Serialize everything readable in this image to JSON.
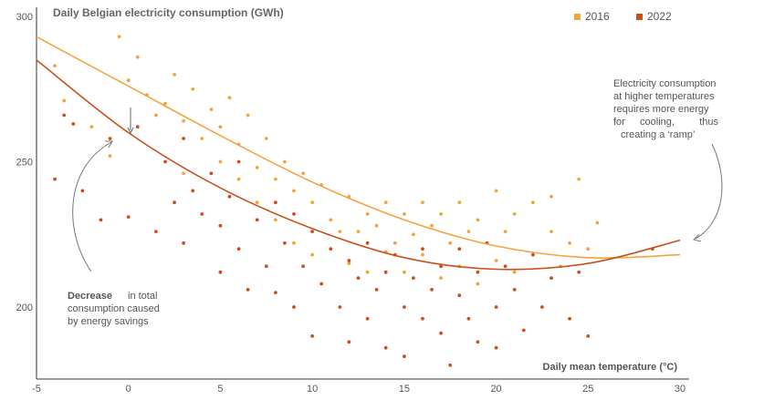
{
  "chart_data": {
    "type": "scatter",
    "title": "Daily Belgian electricity consumption (GWh)",
    "xlabel": "Daily mean temperature (°C)",
    "ylabel": "",
    "xlim": [
      -5,
      30
    ],
    "ylim": [
      180,
      300
    ],
    "x_ticks": [
      "-5",
      "0",
      "5",
      "10",
      "15",
      "20",
      "25",
      "30"
    ],
    "y_ticks": [
      "200",
      "250",
      "300"
    ],
    "grid": false,
    "legend_position": "top-right",
    "colors": {
      "2016": "#f4a340",
      "2022": "#c9501c"
    },
    "series": [
      {
        "name": "2016",
        "color": "#f4a340",
        "trend_points": [
          [
            -5,
            293
          ],
          [
            0,
            276
          ],
          [
            5,
            259
          ],
          [
            10,
            243
          ],
          [
            15,
            230
          ],
          [
            20,
            221
          ],
          [
            25,
            217
          ],
          [
            30,
            218
          ]
        ],
        "points": [
          [
            -4,
            283
          ],
          [
            -3.5,
            271
          ],
          [
            -2,
            262
          ],
          [
            -1,
            252
          ],
          [
            -0.5,
            293
          ],
          [
            0,
            278
          ],
          [
            0.5,
            286
          ],
          [
            1,
            273
          ],
          [
            1.5,
            266
          ],
          [
            2,
            270
          ],
          [
            2.5,
            280
          ],
          [
            3,
            264
          ],
          [
            3,
            246
          ],
          [
            3.5,
            275
          ],
          [
            4,
            258
          ],
          [
            4.5,
            268
          ],
          [
            5,
            262
          ],
          [
            5,
            250
          ],
          [
            5.5,
            272
          ],
          [
            6,
            256
          ],
          [
            6,
            244
          ],
          [
            6.5,
            266
          ],
          [
            7,
            248
          ],
          [
            7,
            236
          ],
          [
            7.5,
            258
          ],
          [
            8,
            244
          ],
          [
            8,
            230
          ],
          [
            8.5,
            250
          ],
          [
            9,
            240
          ],
          [
            9,
            222
          ],
          [
            9.5,
            246
          ],
          [
            10,
            236
          ],
          [
            10,
            218
          ],
          [
            10.5,
            242
          ],
          [
            11,
            230
          ],
          [
            11.5,
            226
          ],
          [
            12,
            238
          ],
          [
            12,
            215
          ],
          [
            12.5,
            226
          ],
          [
            13,
            232
          ],
          [
            13,
            212
          ],
          [
            13.5,
            228
          ],
          [
            14,
            236
          ],
          [
            14,
            219
          ],
          [
            14.5,
            222
          ],
          [
            15,
            232
          ],
          [
            15,
            212
          ],
          [
            15.5,
            225
          ],
          [
            16,
            236
          ],
          [
            16,
            218
          ],
          [
            16.5,
            228
          ],
          [
            17,
            232
          ],
          [
            17,
            210
          ],
          [
            17.5,
            222
          ],
          [
            18,
            236
          ],
          [
            18,
            214
          ],
          [
            18.5,
            226
          ],
          [
            19,
            230
          ],
          [
            19,
            208
          ],
          [
            19.5,
            222
          ],
          [
            20,
            240
          ],
          [
            20,
            216
          ],
          [
            20.5,
            226
          ],
          [
            21,
            232
          ],
          [
            21,
            212
          ],
          [
            22,
            236
          ],
          [
            22,
            218
          ],
          [
            23,
            226
          ],
          [
            23,
            238
          ],
          [
            23.5,
            214
          ],
          [
            24,
            222
          ],
          [
            24.5,
            244
          ],
          [
            25,
            220
          ],
          [
            25.5,
            229
          ]
        ]
      },
      {
        "name": "2022",
        "color": "#c9501c",
        "trend_points": [
          [
            -5,
            285
          ],
          [
            0,
            260
          ],
          [
            5,
            241
          ],
          [
            10,
            227
          ],
          [
            15,
            217
          ],
          [
            20,
            213
          ],
          [
            25,
            215
          ],
          [
            30,
            223
          ]
        ],
        "points": [
          [
            -4,
            244
          ],
          [
            -3.5,
            266
          ],
          [
            -3,
            263
          ],
          [
            -2.5,
            240
          ],
          [
            -1.5,
            230
          ],
          [
            -1,
            258
          ],
          [
            0,
            231
          ],
          [
            0.5,
            262
          ],
          [
            1.5,
            226
          ],
          [
            2,
            250
          ],
          [
            2.5,
            236
          ],
          [
            3,
            258
          ],
          [
            3,
            222
          ],
          [
            3.5,
            240
          ],
          [
            4,
            232
          ],
          [
            4.5,
            246
          ],
          [
            5,
            228
          ],
          [
            5,
            212
          ],
          [
            5.5,
            238
          ],
          [
            6,
            220
          ],
          [
            6,
            250
          ],
          [
            6.5,
            206
          ],
          [
            7,
            230
          ],
          [
            7.5,
            214
          ],
          [
            8,
            236
          ],
          [
            8,
            205
          ],
          [
            8.5,
            222
          ],
          [
            9,
            232
          ],
          [
            9,
            200
          ],
          [
            9.5,
            214
          ],
          [
            10,
            226
          ],
          [
            10,
            190
          ],
          [
            10.5,
            208
          ],
          [
            11,
            220
          ],
          [
            11.5,
            200
          ],
          [
            12,
            216
          ],
          [
            12,
            188
          ],
          [
            12.5,
            210
          ],
          [
            13,
            222
          ],
          [
            13,
            196
          ],
          [
            13.5,
            206
          ],
          [
            14,
            212
          ],
          [
            14,
            186
          ],
          [
            14.5,
            218
          ],
          [
            15,
            200
          ],
          [
            15,
            183
          ],
          [
            15.5,
            210
          ],
          [
            16,
            220
          ],
          [
            16,
            196
          ],
          [
            16.5,
            206
          ],
          [
            17,
            214
          ],
          [
            17,
            191
          ],
          [
            17.5,
            180
          ],
          [
            18,
            204
          ],
          [
            18,
            220
          ],
          [
            18.5,
            196
          ],
          [
            19,
            212
          ],
          [
            19,
            188
          ],
          [
            19.5,
            222
          ],
          [
            20,
            200
          ],
          [
            20,
            186
          ],
          [
            20.5,
            214
          ],
          [
            21,
            206
          ],
          [
            21.5,
            192
          ],
          [
            22,
            218
          ],
          [
            22.5,
            200
          ],
          [
            23,
            210
          ],
          [
            24,
            196
          ],
          [
            24.5,
            212
          ],
          [
            25,
            190
          ],
          [
            28.5,
            220
          ]
        ]
      }
    ],
    "annotations": {
      "savings_bold": "Decrease",
      "savings_rest": "in total",
      "savings_line2": "consumption caused",
      "savings_line3": "by energy savings",
      "ramp_line1": "Electricity consumption",
      "ramp_line2": "at higher temperatures",
      "ramp_line3": "requires more energy",
      "ramp_line4a": "for",
      "ramp_line4b": "cooling,",
      "ramp_line4c": "thus",
      "ramp_line5": "creating a ‘ramp’"
    }
  }
}
